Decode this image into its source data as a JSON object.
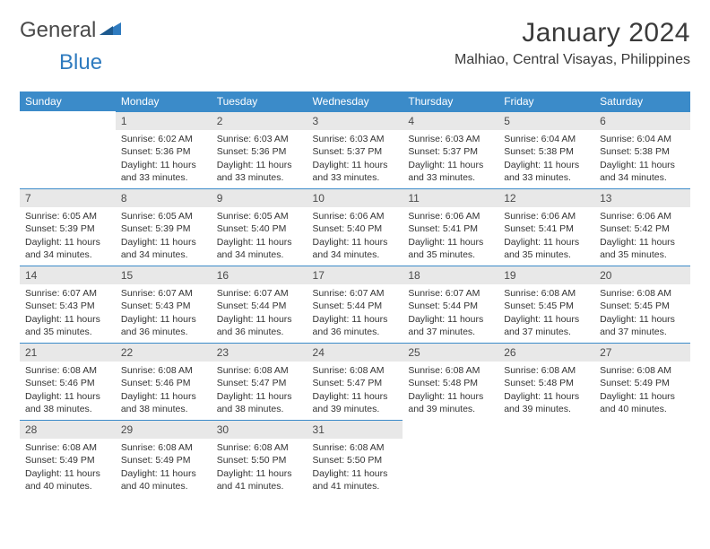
{
  "colors": {
    "header_bg": "#3b8bc9",
    "header_text": "#ffffff",
    "daynum_bg": "#e8e8e8",
    "daynum_border": "#3b8bc9",
    "body_text": "#333333",
    "page_bg": "#ffffff",
    "logo_gray": "#4a4a4a",
    "logo_blue": "#2f7bbf"
  },
  "logo": {
    "part1": "General",
    "part2": "Blue"
  },
  "title": "January 2024",
  "location": "Malhiao, Central Visayas, Philippines",
  "weekdays": [
    "Sunday",
    "Monday",
    "Tuesday",
    "Wednesday",
    "Thursday",
    "Friday",
    "Saturday"
  ],
  "weeks": [
    [
      {
        "num": "",
        "lines": []
      },
      {
        "num": "1",
        "lines": [
          "Sunrise: 6:02 AM",
          "Sunset: 5:36 PM",
          "Daylight: 11 hours and 33 minutes."
        ]
      },
      {
        "num": "2",
        "lines": [
          "Sunrise: 6:03 AM",
          "Sunset: 5:36 PM",
          "Daylight: 11 hours and 33 minutes."
        ]
      },
      {
        "num": "3",
        "lines": [
          "Sunrise: 6:03 AM",
          "Sunset: 5:37 PM",
          "Daylight: 11 hours and 33 minutes."
        ]
      },
      {
        "num": "4",
        "lines": [
          "Sunrise: 6:03 AM",
          "Sunset: 5:37 PM",
          "Daylight: 11 hours and 33 minutes."
        ]
      },
      {
        "num": "5",
        "lines": [
          "Sunrise: 6:04 AM",
          "Sunset: 5:38 PM",
          "Daylight: 11 hours and 33 minutes."
        ]
      },
      {
        "num": "6",
        "lines": [
          "Sunrise: 6:04 AM",
          "Sunset: 5:38 PM",
          "Daylight: 11 hours and 34 minutes."
        ]
      }
    ],
    [
      {
        "num": "7",
        "lines": [
          "Sunrise: 6:05 AM",
          "Sunset: 5:39 PM",
          "Daylight: 11 hours and 34 minutes."
        ]
      },
      {
        "num": "8",
        "lines": [
          "Sunrise: 6:05 AM",
          "Sunset: 5:39 PM",
          "Daylight: 11 hours and 34 minutes."
        ]
      },
      {
        "num": "9",
        "lines": [
          "Sunrise: 6:05 AM",
          "Sunset: 5:40 PM",
          "Daylight: 11 hours and 34 minutes."
        ]
      },
      {
        "num": "10",
        "lines": [
          "Sunrise: 6:06 AM",
          "Sunset: 5:40 PM",
          "Daylight: 11 hours and 34 minutes."
        ]
      },
      {
        "num": "11",
        "lines": [
          "Sunrise: 6:06 AM",
          "Sunset: 5:41 PM",
          "Daylight: 11 hours and 35 minutes."
        ]
      },
      {
        "num": "12",
        "lines": [
          "Sunrise: 6:06 AM",
          "Sunset: 5:41 PM",
          "Daylight: 11 hours and 35 minutes."
        ]
      },
      {
        "num": "13",
        "lines": [
          "Sunrise: 6:06 AM",
          "Sunset: 5:42 PM",
          "Daylight: 11 hours and 35 minutes."
        ]
      }
    ],
    [
      {
        "num": "14",
        "lines": [
          "Sunrise: 6:07 AM",
          "Sunset: 5:43 PM",
          "Daylight: 11 hours and 35 minutes."
        ]
      },
      {
        "num": "15",
        "lines": [
          "Sunrise: 6:07 AM",
          "Sunset: 5:43 PM",
          "Daylight: 11 hours and 36 minutes."
        ]
      },
      {
        "num": "16",
        "lines": [
          "Sunrise: 6:07 AM",
          "Sunset: 5:44 PM",
          "Daylight: 11 hours and 36 minutes."
        ]
      },
      {
        "num": "17",
        "lines": [
          "Sunrise: 6:07 AM",
          "Sunset: 5:44 PM",
          "Daylight: 11 hours and 36 minutes."
        ]
      },
      {
        "num": "18",
        "lines": [
          "Sunrise: 6:07 AM",
          "Sunset: 5:44 PM",
          "Daylight: 11 hours and 37 minutes."
        ]
      },
      {
        "num": "19",
        "lines": [
          "Sunrise: 6:08 AM",
          "Sunset: 5:45 PM",
          "Daylight: 11 hours and 37 minutes."
        ]
      },
      {
        "num": "20",
        "lines": [
          "Sunrise: 6:08 AM",
          "Sunset: 5:45 PM",
          "Daylight: 11 hours and 37 minutes."
        ]
      }
    ],
    [
      {
        "num": "21",
        "lines": [
          "Sunrise: 6:08 AM",
          "Sunset: 5:46 PM",
          "Daylight: 11 hours and 38 minutes."
        ]
      },
      {
        "num": "22",
        "lines": [
          "Sunrise: 6:08 AM",
          "Sunset: 5:46 PM",
          "Daylight: 11 hours and 38 minutes."
        ]
      },
      {
        "num": "23",
        "lines": [
          "Sunrise: 6:08 AM",
          "Sunset: 5:47 PM",
          "Daylight: 11 hours and 38 minutes."
        ]
      },
      {
        "num": "24",
        "lines": [
          "Sunrise: 6:08 AM",
          "Sunset: 5:47 PM",
          "Daylight: 11 hours and 39 minutes."
        ]
      },
      {
        "num": "25",
        "lines": [
          "Sunrise: 6:08 AM",
          "Sunset: 5:48 PM",
          "Daylight: 11 hours and 39 minutes."
        ]
      },
      {
        "num": "26",
        "lines": [
          "Sunrise: 6:08 AM",
          "Sunset: 5:48 PM",
          "Daylight: 11 hours and 39 minutes."
        ]
      },
      {
        "num": "27",
        "lines": [
          "Sunrise: 6:08 AM",
          "Sunset: 5:49 PM",
          "Daylight: 11 hours and 40 minutes."
        ]
      }
    ],
    [
      {
        "num": "28",
        "lines": [
          "Sunrise: 6:08 AM",
          "Sunset: 5:49 PM",
          "Daylight: 11 hours and 40 minutes."
        ]
      },
      {
        "num": "29",
        "lines": [
          "Sunrise: 6:08 AM",
          "Sunset: 5:49 PM",
          "Daylight: 11 hours and 40 minutes."
        ]
      },
      {
        "num": "30",
        "lines": [
          "Sunrise: 6:08 AM",
          "Sunset: 5:50 PM",
          "Daylight: 11 hours and 41 minutes."
        ]
      },
      {
        "num": "31",
        "lines": [
          "Sunrise: 6:08 AM",
          "Sunset: 5:50 PM",
          "Daylight: 11 hours and 41 minutes."
        ]
      },
      {
        "num": "",
        "lines": []
      },
      {
        "num": "",
        "lines": []
      },
      {
        "num": "",
        "lines": []
      }
    ]
  ]
}
